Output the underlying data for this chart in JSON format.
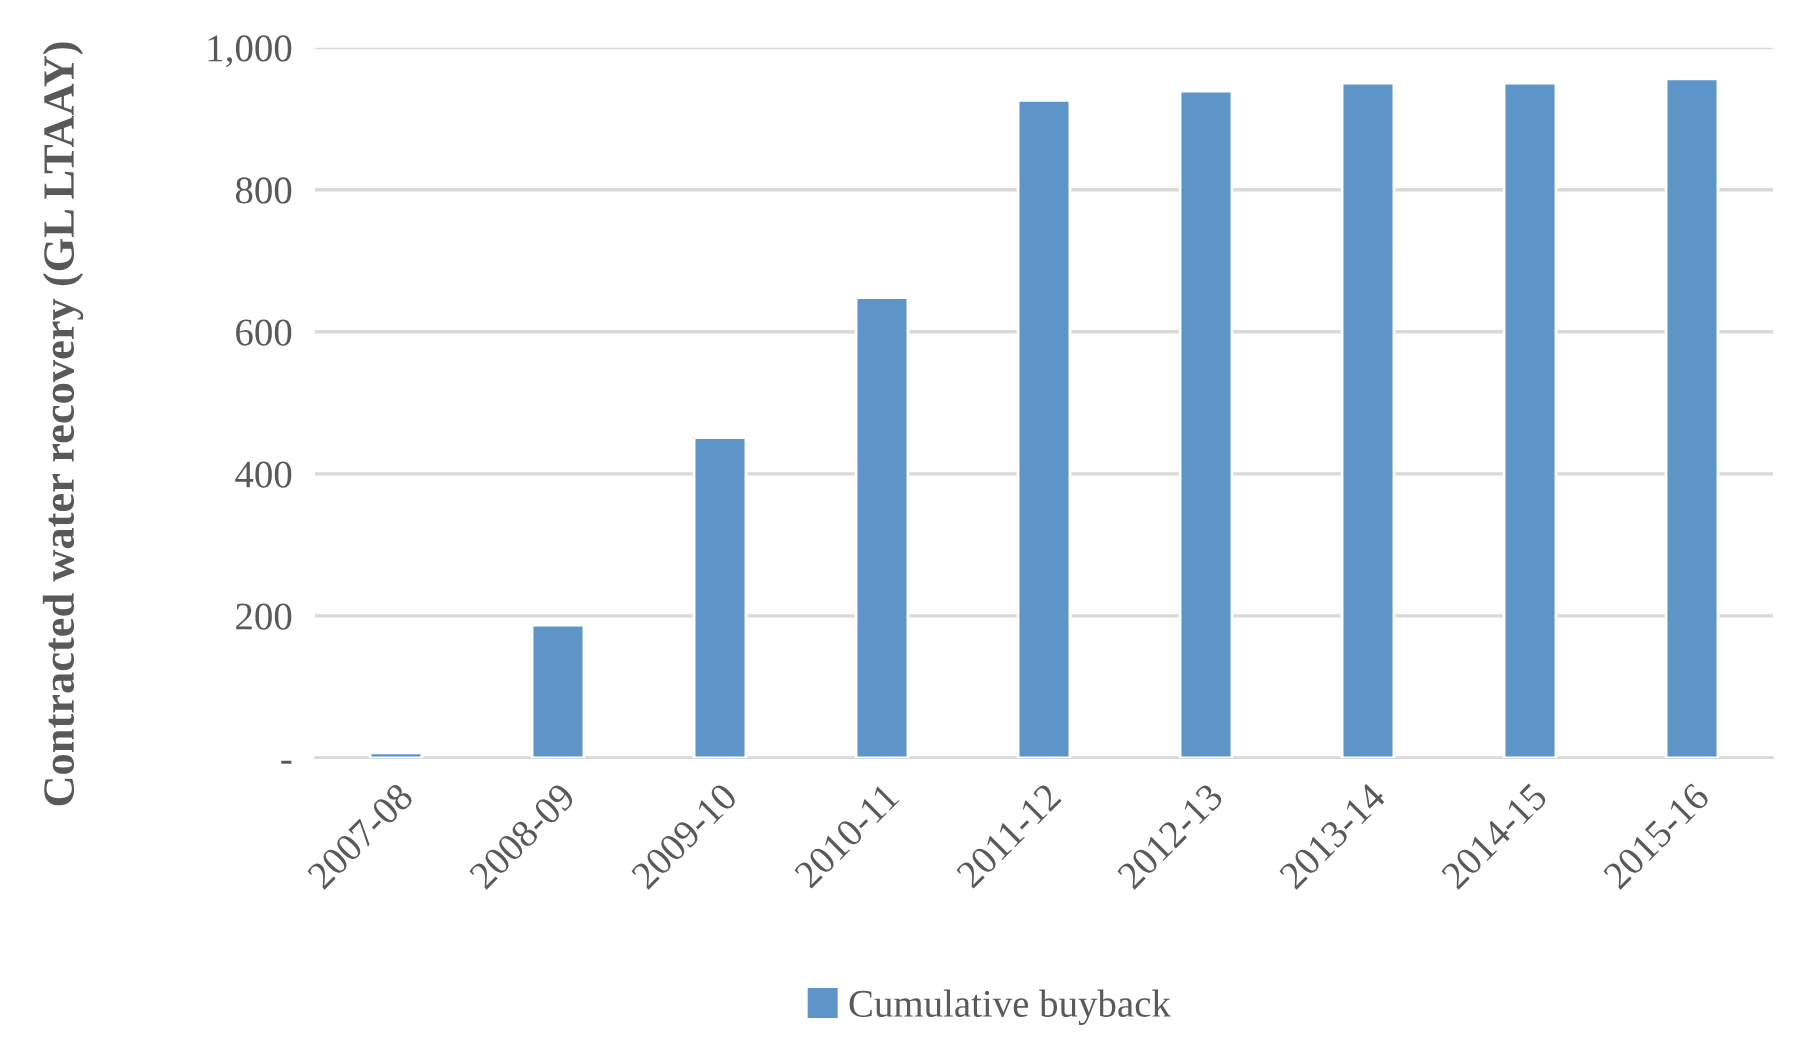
{
  "chart_data": {
    "type": "bar",
    "ylabel": "Contracted water recovery (GL LTAAY)",
    "categories": [
      "2007-08",
      "2008-09",
      "2009-10",
      "2010-11",
      "2011-12",
      "2012-13",
      "2013-14",
      "2014-15",
      "2015-16"
    ],
    "series": [
      {
        "name": "Cumulative buyback",
        "color": "#5e95c9",
        "values": [
          7,
          187,
          451,
          648,
          926,
          939,
          950,
          950,
          956
        ]
      }
    ],
    "ylim": [
      0,
      1000
    ],
    "yticks": [
      {
        "value": 0,
        "label": "-"
      },
      200,
      400,
      600,
      800,
      {
        "value": 1000,
        "label": "1,000"
      }
    ],
    "grid": "y",
    "legend": "bottom"
  }
}
